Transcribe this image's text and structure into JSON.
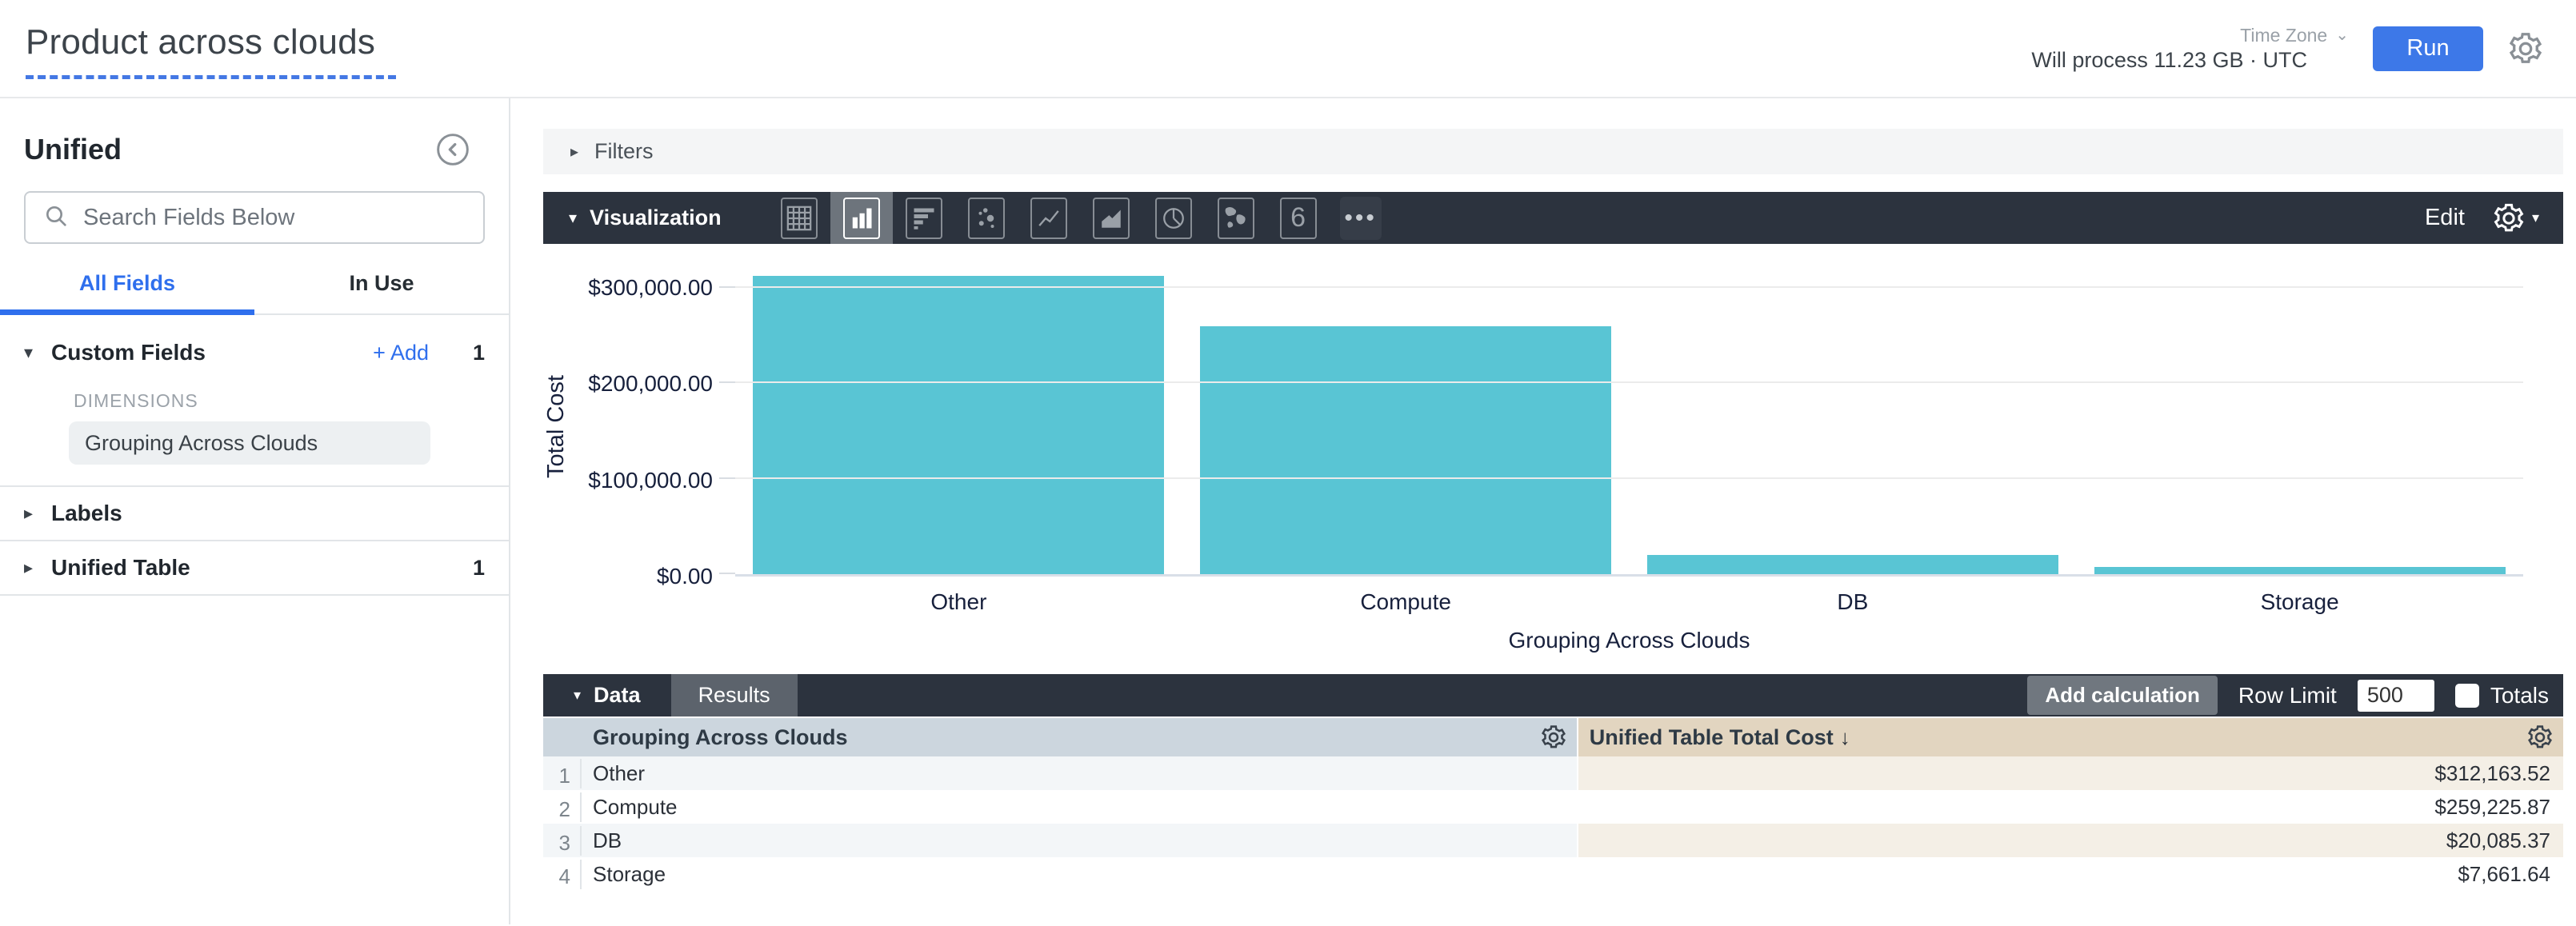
{
  "header": {
    "title": "Product across clouds",
    "process_text": "Will process 11.23 GB · UTC",
    "time_zone_label": "Time Zone",
    "run_label": "Run"
  },
  "sidebar": {
    "view_name": "Unified",
    "search_placeholder": "Search Fields Below",
    "tabs": [
      {
        "label": "All Fields",
        "active": true
      },
      {
        "label": "In Use",
        "active": false
      }
    ],
    "custom_fields": {
      "label": "Custom Fields",
      "add_label": "+ Add",
      "count": "1",
      "group_label": "DIMENSIONS",
      "fields": [
        "Grouping Across Clouds"
      ]
    },
    "labels_section": {
      "label": "Labels"
    },
    "unified_table_section": {
      "label": "Unified Table",
      "count": "1"
    }
  },
  "filters": {
    "label": "Filters"
  },
  "visualization": {
    "label": "Visualization",
    "edit_label": "Edit",
    "icons": [
      "table",
      "column",
      "bar",
      "scatter",
      "line",
      "area",
      "pie",
      "map",
      "single-value",
      "more"
    ],
    "selected_icon": "column",
    "single_value_glyph": "6",
    "more_glyph": "•••"
  },
  "chart_data": {
    "type": "bar",
    "title": "",
    "categories": [
      "Other",
      "Compute",
      "DB",
      "Storage"
    ],
    "values": [
      312163.52,
      259225.87,
      20085.37,
      7661.64
    ],
    "value_labels": [
      "$312,163.52",
      "$259,225.87",
      "$20,085.37",
      "$7,661.64"
    ],
    "xlabel": "Grouping Across Clouds",
    "ylabel": "Total Cost",
    "yticks": [
      0,
      100000,
      200000,
      300000
    ],
    "ytick_labels": [
      "$0.00",
      "$100,000.00",
      "$200,000.00",
      "$300,000.00"
    ],
    "ylim": [
      0,
      312163.52
    ],
    "grid": true,
    "legend": false,
    "bar_color": "#59c5d4"
  },
  "data_panel": {
    "data_tab": "Data",
    "results_tab": "Results",
    "add_calculation_label": "Add calculation",
    "row_limit_label": "Row Limit",
    "row_limit_value": "500",
    "totals_label": "Totals"
  },
  "table": {
    "columns": [
      {
        "label": "Grouping Across Clouds"
      },
      {
        "label": "Unified Table Total Cost",
        "sort_indicator": "↓"
      }
    ],
    "rows": [
      {
        "num": "1",
        "dimension": "Other",
        "value": "$312,163.52"
      },
      {
        "num": "2",
        "dimension": "Compute",
        "value": "$259,225.87"
      },
      {
        "num": "3",
        "dimension": "DB",
        "value": "$20,085.37"
      },
      {
        "num": "4",
        "dimension": "Storage",
        "value": "$7,661.64"
      }
    ]
  },
  "colors": {
    "accent_blue": "#3d78e8",
    "link_blue": "#2f6fed",
    "bar_teal": "#59c5d4",
    "toolbar_dark": "#2c333e",
    "dimension_header": "#ccd6de",
    "measure_header": "#e2d5c0",
    "dimension_stripe": "#f3f6f8",
    "measure_stripe": "#f4efe6"
  }
}
